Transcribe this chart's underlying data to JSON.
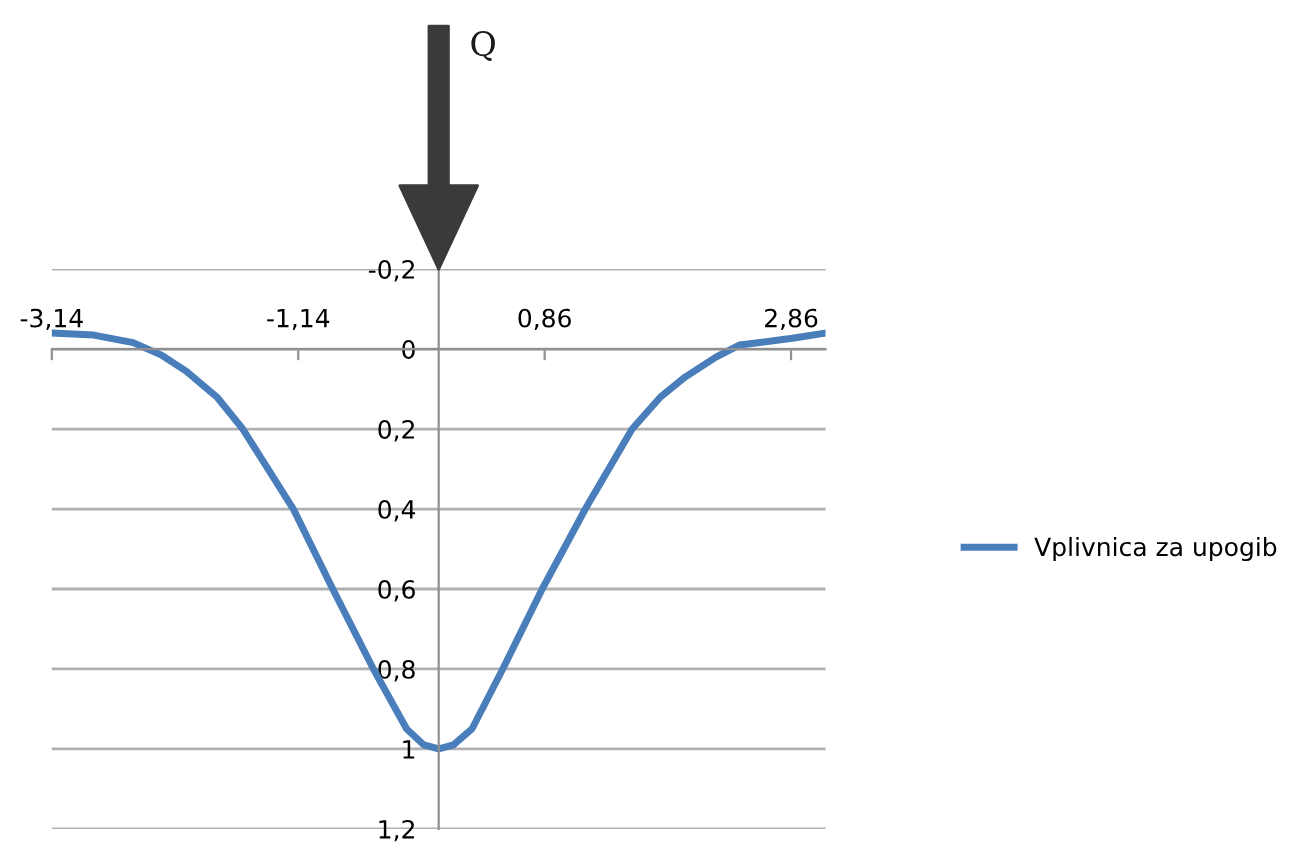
{
  "chart_data": {
    "type": "line",
    "x": [
      -3.14,
      -2.8,
      -2.48,
      -2.25,
      -2.05,
      -1.8,
      -1.59,
      -1.18,
      -0.86,
      -0.53,
      -0.26,
      -0.12,
      0,
      0.12,
      0.27,
      0.52,
      0.84,
      1.19,
      1.57,
      1.8,
      2.0,
      2.25,
      2.44,
      2.87,
      3.14
    ],
    "series": [
      {
        "name": "Vplivnica za upogib",
        "color": "#4a7ebb",
        "values": [
          -0.04,
          -0.035,
          -0.016,
          0.015,
          0.055,
          0.12,
          0.2,
          0.4,
          0.6,
          0.8,
          0.95,
          0.99,
          1.0,
          0.99,
          0.95,
          0.8,
          0.6,
          0.4,
          0.2,
          0.12,
          0.07,
          0.02,
          -0.01,
          -0.027,
          -0.04
        ]
      }
    ],
    "xlim": [
      -3.14,
      3.14
    ],
    "xticks": [
      {
        "value": -3.14,
        "label": "-3,14"
      },
      {
        "value": -1.14,
        "label": "-1,14"
      },
      {
        "value": 0.86,
        "label": "0,86"
      },
      {
        "value": 2.86,
        "label": "2,86"
      }
    ],
    "ylim": [
      1.2,
      -0.2
    ],
    "yticks": [
      {
        "value": -0.2,
        "label": "-0,2"
      },
      {
        "value": 0,
        "label": "0"
      },
      {
        "value": 0.2,
        "label": "0,2"
      },
      {
        "value": 0.4,
        "label": "0,4"
      },
      {
        "value": 0.6,
        "label": "0,6"
      },
      {
        "value": 0.8,
        "label": "0,8"
      },
      {
        "value": 1,
        "label": "1"
      },
      {
        "value": 1.2,
        "label": "1,2"
      }
    ],
    "grid": "y",
    "legend": "right",
    "marker": "none",
    "line_style": "solid",
    "annotations": [
      "Q"
    ]
  }
}
